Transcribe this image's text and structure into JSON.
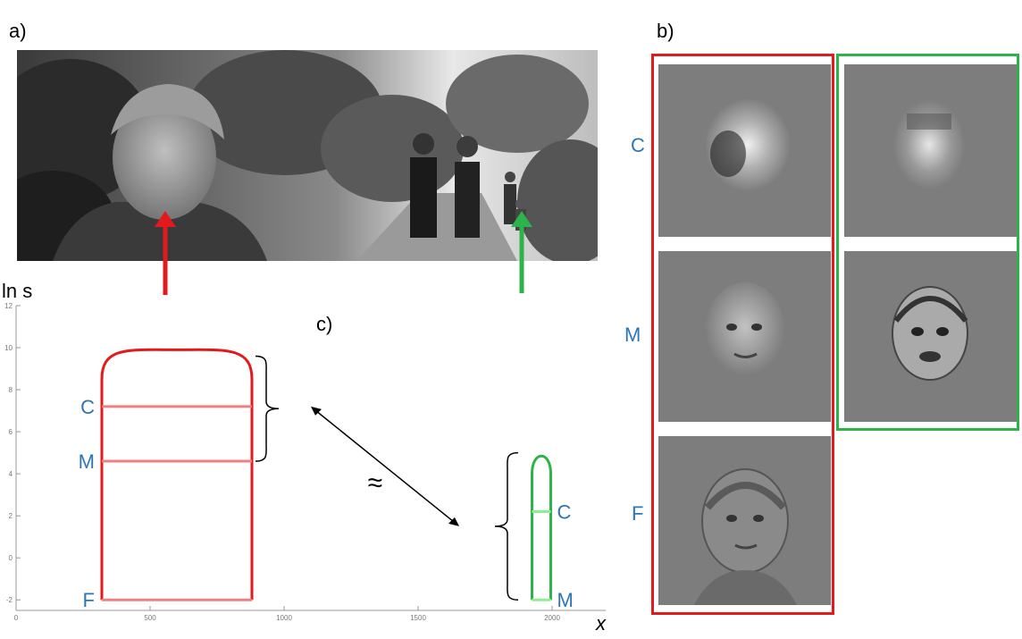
{
  "labels": {
    "panel_a": "a)",
    "panel_b": "b)",
    "panel_c": "c)",
    "y_axis": "ln s",
    "x_axis": "x",
    "approx": "≈"
  },
  "scales": {
    "coarse": "C",
    "medium": "M",
    "fine": "F"
  },
  "colors": {
    "near_subject": "#e31a1c",
    "far_subject": "#2db34a",
    "scale_text": "#2e75b6",
    "near_band": "#f08080",
    "far_band": "#90ee90"
  },
  "icons": {
    "near_arrow": "arrow-up-icon",
    "far_arrow": "arrow-up-icon"
  },
  "chart_data": {
    "type": "line",
    "xlim": [
      0,
      2200
    ],
    "ylim": [
      -2.5,
      12
    ],
    "x_ticks": [
      0,
      500,
      1000,
      1500,
      2000
    ],
    "y_ticks": [
      -2,
      0,
      2,
      4,
      6,
      8,
      10,
      12
    ],
    "grid": false,
    "series": [
      {
        "points": [
          [
            320,
            -2
          ],
          [
            320,
            8.5
          ],
          [
            400,
            9.5
          ],
          [
            600,
            9.9
          ],
          [
            800,
            9.5
          ],
          [
            880,
            8.5
          ],
          [
            880,
            -2
          ]
        ],
        "bands": [
          {
            "label": "C",
            "y": 7.2
          },
          {
            "label": "M",
            "y": 4.6
          },
          {
            "label": "F",
            "y": -2
          }
        ]
      },
      {
        "points": [
          [
            1925,
            -2
          ],
          [
            1925,
            4
          ],
          [
            1960,
            5
          ],
          [
            1995,
            4
          ],
          [
            1995,
            -2
          ]
        ],
        "bands": [
          {
            "label": "C",
            "y": 2.2
          },
          {
            "label": "M",
            "y": -2
          }
        ]
      }
    ]
  }
}
